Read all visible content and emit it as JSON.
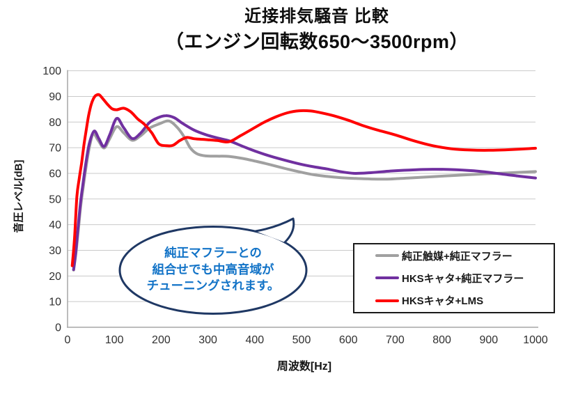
{
  "title": {
    "line1": "近接排気騒音 比較",
    "line2": "（エンジン回転数650〜3500rpm）"
  },
  "bubble": {
    "line1": "純正マフラーとの",
    "line2": "組合せでも中高音域が",
    "line3": "チューニングされます。",
    "text_color": "#1273C7",
    "border_color": "#1F3864"
  },
  "colors": {
    "grid": "#C9C9C9",
    "axis": "#A6A6A6",
    "tick": "#303030",
    "title": "#0D0D0D"
  },
  "chart_data": {
    "type": "line",
    "title": "近接排気騒音 比較（エンジン回転数650〜3500rpm）",
    "xlabel": "周波数[Hz]",
    "ylabel": "音圧レベル[dB]",
    "xlim": [
      0,
      1000
    ],
    "ylim": [
      0,
      100
    ],
    "x_ticks": [
      0,
      100,
      200,
      300,
      400,
      500,
      600,
      700,
      800,
      900,
      1000
    ],
    "y_ticks": [
      0,
      10,
      20,
      30,
      40,
      50,
      60,
      70,
      80,
      90,
      100
    ],
    "grid": "horizontal",
    "legend_position": "inside lower right",
    "series": [
      {
        "name": "純正触媒+純正マフラー",
        "color": "#A0A0A0",
        "x": [
          13,
          18,
          23,
          28,
          33,
          40,
          47,
          55,
          65,
          78,
          90,
          105,
          120,
          138,
          155,
          175,
          196,
          217,
          235,
          250,
          262,
          276,
          295,
          320,
          345,
          375,
          405,
          435,
          465,
          495,
          525,
          555,
          585,
          615,
          650,
          690,
          730,
          780,
          830,
          880,
          930,
          965,
          1000
        ],
        "y": [
          22.3,
          29,
          38,
          47,
          54,
          63,
          70.5,
          75.4,
          73,
          69.9,
          73.5,
          78.2,
          75.8,
          72.9,
          74.5,
          77.6,
          79.3,
          80.4,
          77.8,
          74,
          70,
          67.7,
          66.8,
          66.7,
          66.6,
          65.8,
          64.6,
          63.3,
          61.9,
          60.6,
          59.5,
          58.8,
          58.3,
          58,
          57.8,
          57.8,
          58.2,
          58.7,
          59.2,
          59.7,
          60.1,
          60.4,
          60.7
        ]
      },
      {
        "name": "HKSキャタ+純正マフラー",
        "color": "#7030A0",
        "x": [
          13,
          18,
          23,
          28,
          33,
          40,
          47,
          57,
          67,
          78,
          90,
          105,
          120,
          138,
          155,
          175,
          192,
          210,
          228,
          245,
          270,
          295,
          320,
          345,
          375,
          405,
          435,
          465,
          495,
          525,
          555,
          585,
          615,
          650,
          690,
          730,
          780,
          830,
          880,
          930,
          965,
          1000
        ],
        "y": [
          22.5,
          30,
          40,
          49,
          56,
          65,
          72,
          76.5,
          73.5,
          70.5,
          75,
          81.4,
          77.8,
          73.6,
          75.5,
          79.8,
          81.6,
          82.5,
          81.7,
          79.6,
          76.9,
          75.1,
          73.8,
          72.7,
          70.5,
          68.4,
          66.6,
          65.1,
          63.7,
          62.6,
          61.7,
          60.6,
          60,
          60.3,
          60.9,
          61.3,
          61.6,
          61.4,
          60.8,
          59.7,
          58.9,
          58.2
        ]
      },
      {
        "name": "HKSキャタ+LMS",
        "color": "#FF0000",
        "x": [
          10,
          15,
          20,
          25,
          30,
          35,
          40,
          45,
          50,
          55,
          60,
          67,
          75,
          85,
          95,
          105,
          120,
          135,
          150,
          165,
          180,
          195,
          210,
          225,
          240,
          255,
          270,
          285,
          300,
          320,
          345,
          370,
          395,
          420,
          445,
          470,
          495,
          520,
          545,
          570,
          600,
          630,
          660,
          700,
          740,
          780,
          820,
          860,
          900,
          950,
          1000
        ],
        "y": [
          24,
          35,
          51,
          58,
          64,
          71,
          77,
          82.5,
          86.5,
          89,
          90.3,
          90.7,
          89.2,
          87,
          85.2,
          84.8,
          85.4,
          84,
          81.2,
          79,
          75.8,
          71.5,
          70.8,
          70.9,
          72.8,
          74,
          73.5,
          73.3,
          73.1,
          72.8,
          72.3,
          74.7,
          77.3,
          79.9,
          82,
          83.6,
          84.4,
          84.3,
          83.5,
          82.4,
          80.7,
          78.7,
          77,
          75,
          72.7,
          70.8,
          69.6,
          69.1,
          69,
          69.3,
          69.8
        ]
      }
    ]
  }
}
